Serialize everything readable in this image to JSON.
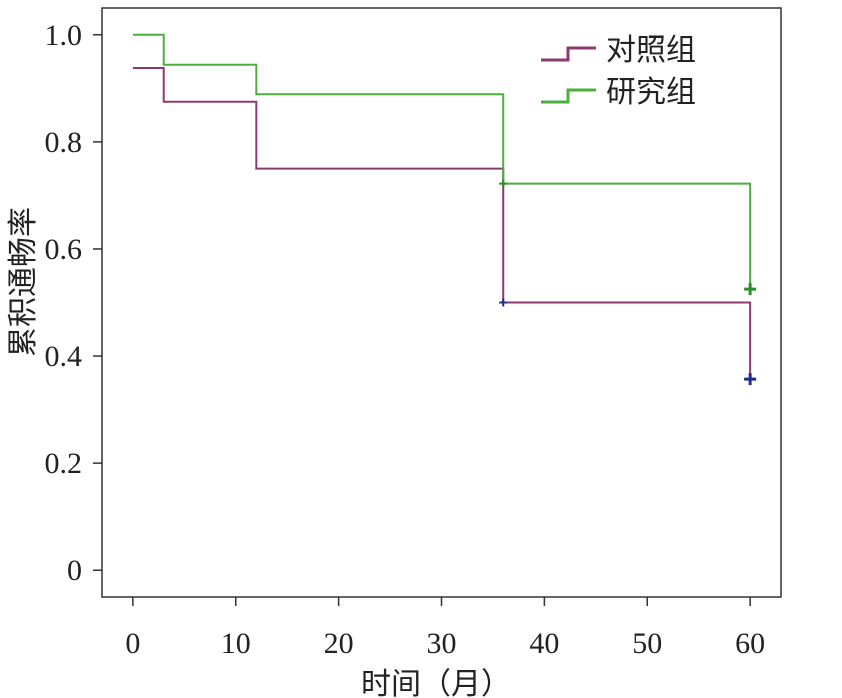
{
  "chart_data": {
    "type": "line",
    "step": true,
    "xlabel": "时间（月）",
    "ylabel": "累积通畅率",
    "xlim": [
      -3,
      63
    ],
    "ylim": [
      -0.05,
      1.05
    ],
    "xticks": [
      0,
      10,
      20,
      30,
      40,
      50,
      60
    ],
    "xtick_labels": [
      "0",
      "10",
      "20",
      "30",
      "40",
      "50",
      "60"
    ],
    "yticks": [
      0,
      0.2,
      0.4,
      0.6,
      0.8,
      1.0
    ],
    "ytick_labels": [
      "0",
      "0.2",
      "0.4",
      "0.6",
      "0.8",
      "1.0"
    ],
    "grid": false,
    "legend_position": "top-right",
    "series": [
      {
        "name": "对照组",
        "color": "#8e3a6e",
        "x": [
          0,
          3,
          12,
          36,
          60,
          60
        ],
        "y": [
          0.938,
          0.875,
          0.75,
          0.5,
          0.5,
          0.357
        ],
        "censored": [
          {
            "x": 36,
            "y": 0.5
          },
          {
            "x": 60,
            "y": 0.357
          }
        ],
        "censor_color": "#1f2f8a"
      },
      {
        "name": "研究组",
        "color": "#4caf3c",
        "x": [
          0,
          3,
          12,
          36,
          60,
          60
        ],
        "y": [
          1.0,
          0.944,
          0.889,
          0.722,
          0.722,
          0.525
        ],
        "censored": [
          {
            "x": 36,
            "y": 0.722
          },
          {
            "x": 60,
            "y": 0.525
          }
        ],
        "censor_color": "#2e8b2e"
      }
    ]
  }
}
